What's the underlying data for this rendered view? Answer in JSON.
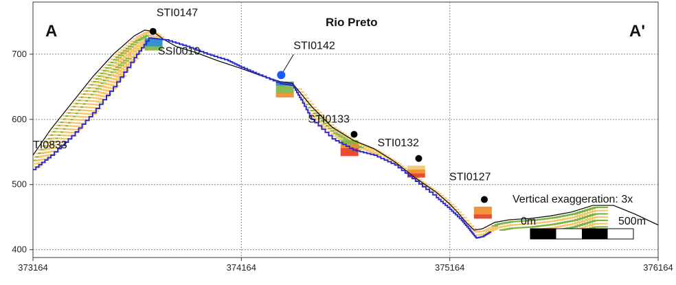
{
  "section": {
    "title": "Rio Preto",
    "start_label": "A",
    "end_label": "A'",
    "vertical_exaggeration": "Vertical exaggeration: 3x",
    "scale_bar": {
      "start": "0m",
      "end": "500m"
    }
  },
  "colors": {
    "terrain": "#111111",
    "water_table": "#2a2ad0",
    "grid": "#888888",
    "well": "#000000",
    "well_highlight": "#1e5bff",
    "fill_yellow": "#f5c66a",
    "fill_green": "#7cb342",
    "fill_blue": "#1e88c8",
    "fill_orange": "#f08a24",
    "fill_red": "#e6391b"
  },
  "chart_data": {
    "type": "line",
    "xlim": [
      373164,
      376164
    ],
    "ylim": [
      388,
      780
    ],
    "x_ticks": [
      373164,
      374164,
      375164,
      376164
    ],
    "y_ticks": [
      400,
      500,
      600,
      700
    ],
    "grid": true,
    "series": [
      {
        "x": [
          373164,
          373250,
          373350,
          373450,
          373550,
          373650,
          373700,
          373740,
          373790,
          373850,
          373950,
          374050,
          374164,
          374250,
          374350,
          374410,
          374500,
          374600,
          374700,
          374800,
          374900,
          375000,
          375100,
          375164,
          375200,
          375240,
          375280,
          375320,
          375380,
          375450,
          375550,
          375650,
          375750,
          375850,
          375950,
          376050,
          376164
        ],
        "y": [
          545,
          585,
          625,
          665,
          700,
          728,
          737,
          735,
          723,
          712,
          702,
          690,
          678,
          668,
          658,
          655,
          620,
          588,
          568,
          555,
          535,
          510,
          488,
          470,
          458,
          443,
          430,
          432,
          442,
          446,
          448,
          452,
          458,
          468,
          468,
          455,
          438
        ]
      },
      {
        "x": [
          373164,
          373250,
          373350,
          373450,
          373550,
          373650,
          373720,
          373800,
          373900,
          374000,
          374100,
          374164,
          374250,
          374350,
          374410,
          374450,
          374500,
          374600,
          374700,
          374800,
          374900,
          375000,
          375100,
          375164,
          375220,
          375260,
          375290,
          375320,
          375360
        ],
        "y": [
          523,
          545,
          575,
          610,
          650,
          695,
          725,
          722,
          712,
          700,
          690,
          680,
          668,
          655,
          652,
          630,
          600,
          570,
          553,
          545,
          530,
          505,
          480,
          462,
          445,
          430,
          418,
          420,
          428
        ]
      }
    ],
    "wells": [
      {
        "name": "STI0147",
        "x": 373740,
        "y": 735
      },
      {
        "name": "SSI0010",
        "x": 374100,
        "y": 690
      },
      {
        "name": "STI0142",
        "x": 374355,
        "y": 668
      },
      {
        "name": "STI0133",
        "x": 374705,
        "y": 577
      },
      {
        "name": "STI0132",
        "x": 375015,
        "y": 540
      },
      {
        "name": "STI0127",
        "x": 375330,
        "y": 477
      },
      {
        "name": "TI0833",
        "x": 373164,
        "y": 540
      }
    ]
  }
}
